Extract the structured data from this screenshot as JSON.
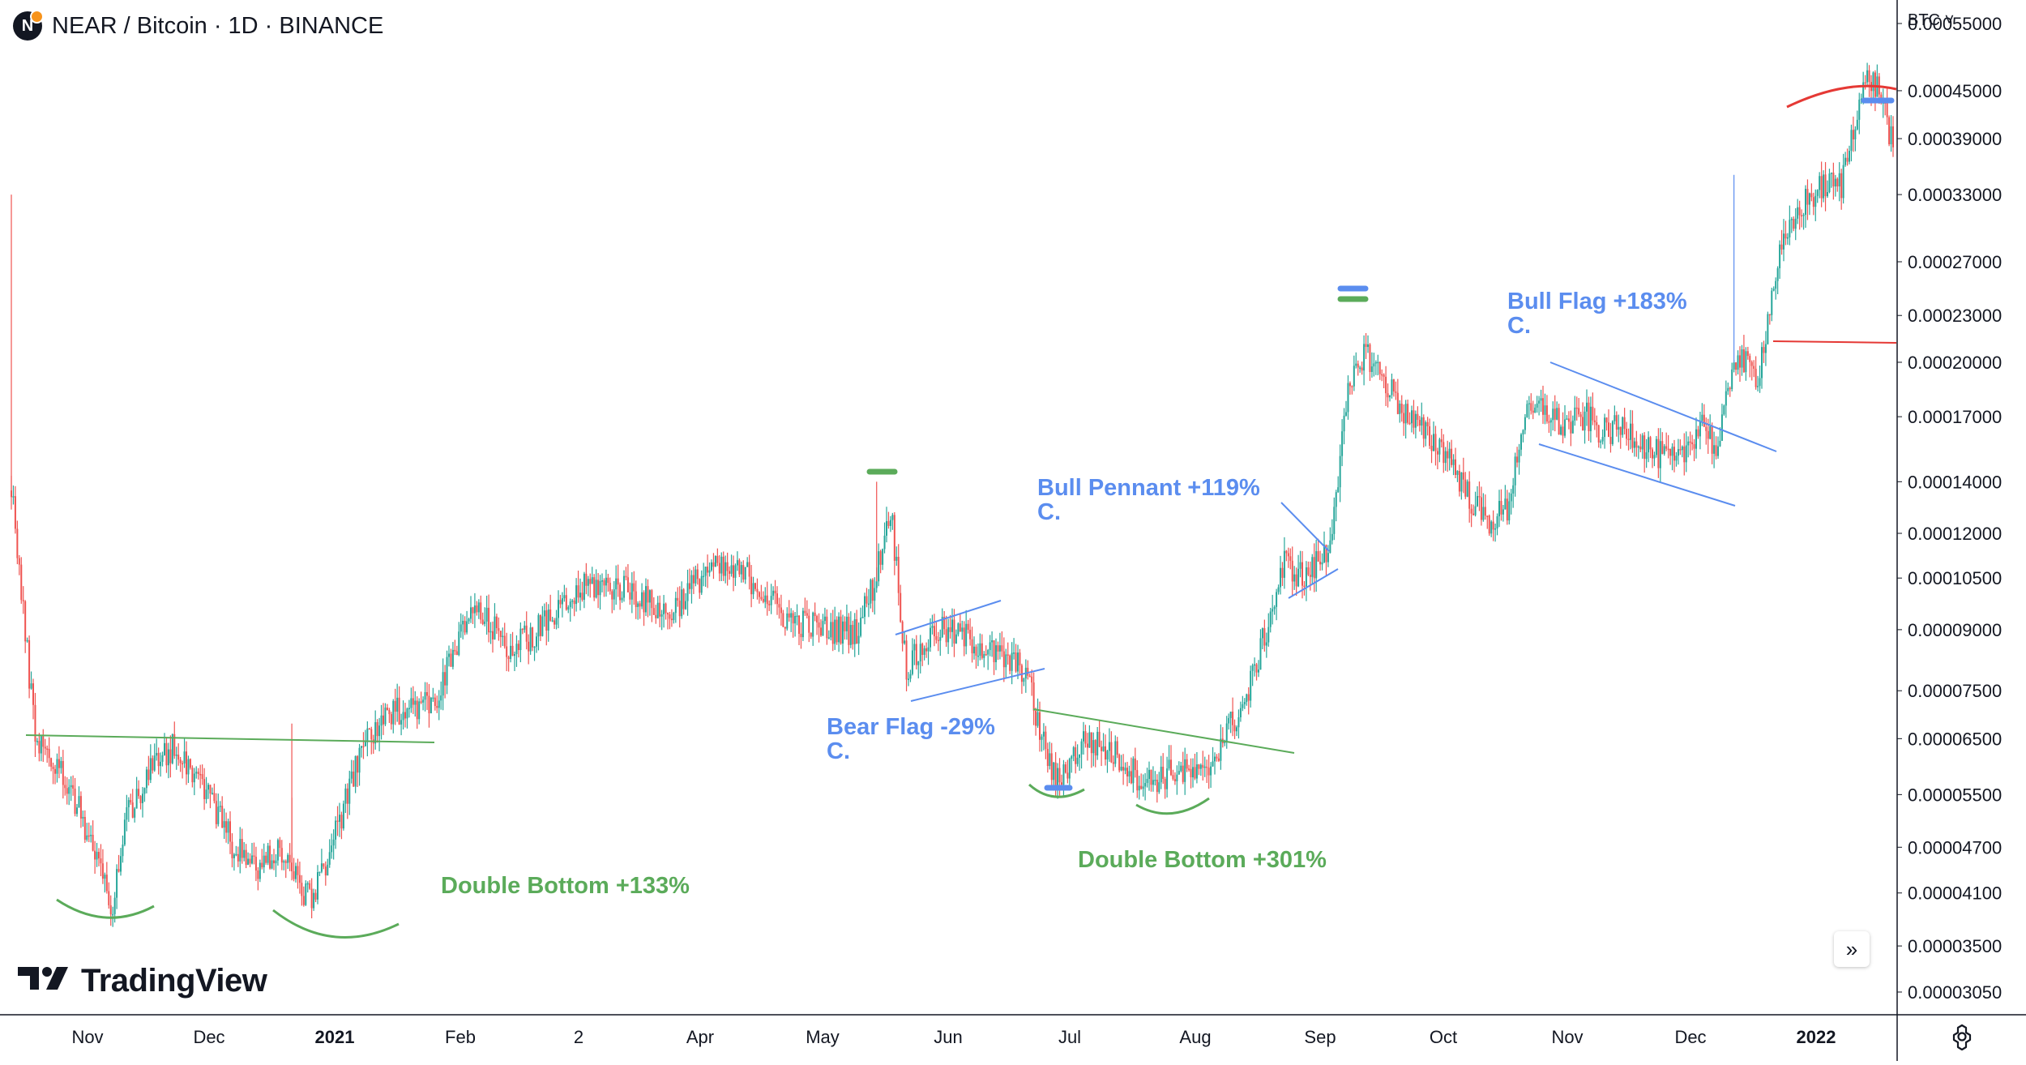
{
  "header": {
    "title": "NEAR / Bitcoin · 1D · BINANCE",
    "logo_letter": "N"
  },
  "currency_selector": "BTC",
  "watermark": "TradingView",
  "colors": {
    "up": "#26a69a",
    "down": "#ef5350",
    "green_annotation": "#5bab5a",
    "blue_annotation": "#5b8def",
    "red_annotation": "#e53935",
    "axis_text": "#131722",
    "grid": "#e9ecf2"
  },
  "icons": [
    "go-to-realtime-icon",
    "settings-icon",
    "chevron-down-icon"
  ],
  "chart_data": {
    "type": "candlestick",
    "scale": "log",
    "x_labels": [
      "Nov",
      "Dec",
      "2021",
      "Feb",
      "2",
      "Apr",
      "May",
      "Jun",
      "Jul",
      "Aug",
      "Sep",
      "Oct",
      "Nov",
      "Dec",
      "2022"
    ],
    "y_ticks": [
      "0.00055000",
      "0.00045000",
      "0.00039000",
      "0.00033000",
      "0.00027000",
      "0.00023000",
      "0.00020000",
      "0.00017000",
      "0.00014000",
      "0.00012000",
      "0.00010500",
      "0.00009000",
      "0.00007500",
      "0.00006500",
      "0.00005500",
      "0.00004700",
      "0.00004100",
      "0.00003500",
      "0.00003050"
    ],
    "ylim": [
      2.85e-05,
      0.00059
    ],
    "anchors": [
      {
        "x": 0,
        "y": 0.00014
      },
      {
        "x": 5,
        "y": 0.0001
      },
      {
        "x": 12,
        "y": 6.6e-05
      },
      {
        "x": 30,
        "y": 5.6e-05
      },
      {
        "x": 44,
        "y": 4.5e-05
      },
      {
        "x": 50,
        "y": 3.85e-05
      },
      {
        "x": 58,
        "y": 5.2e-05
      },
      {
        "x": 70,
        "y": 5.9e-05
      },
      {
        "x": 82,
        "y": 6.4e-05
      },
      {
        "x": 98,
        "y": 5.6e-05
      },
      {
        "x": 112,
        "y": 4.7e-05
      },
      {
        "x": 124,
        "y": 4.4e-05
      },
      {
        "x": 134,
        "y": 4.7e-05
      },
      {
        "x": 150,
        "y": 4e-05
      },
      {
        "x": 162,
        "y": 4.8e-05
      },
      {
        "x": 178,
        "y": 6.5e-05
      },
      {
        "x": 198,
        "y": 7.2e-05
      },
      {
        "x": 212,
        "y": 7.2e-05
      },
      {
        "x": 232,
        "y": 9.6e-05
      },
      {
        "x": 252,
        "y": 8.5e-05
      },
      {
        "x": 272,
        "y": 9.3e-05
      },
      {
        "x": 290,
        "y": 0.000103
      },
      {
        "x": 310,
        "y": 0.000102
      },
      {
        "x": 330,
        "y": 9.4e-05
      },
      {
        "x": 350,
        "y": 0.000108
      },
      {
        "x": 370,
        "y": 0.000106
      },
      {
        "x": 390,
        "y": 9.3e-05
      },
      {
        "x": 410,
        "y": 9e-05
      },
      {
        "x": 425,
        "y": 9e-05
      },
      {
        "x": 434,
        "y": 0.000104
      },
      {
        "x": 442,
        "y": 0.00013
      },
      {
        "x": 450,
        "y": 8e-05
      },
      {
        "x": 465,
        "y": 9e-05
      },
      {
        "x": 480,
        "y": 8.8e-05
      },
      {
        "x": 500,
        "y": 8.2e-05
      },
      {
        "x": 510,
        "y": 8e-05
      },
      {
        "x": 516,
        "y": 6.8e-05
      },
      {
        "x": 525,
        "y": 5.7e-05
      },
      {
        "x": 540,
        "y": 6.5e-05
      },
      {
        "x": 555,
        "y": 6.2e-05
      },
      {
        "x": 570,
        "y": 5.7e-05
      },
      {
        "x": 585,
        "y": 5.9e-05
      },
      {
        "x": 600,
        "y": 5.8e-05
      },
      {
        "x": 610,
        "y": 6.6e-05
      },
      {
        "x": 620,
        "y": 7.2e-05
      },
      {
        "x": 632,
        "y": 9.2e-05
      },
      {
        "x": 640,
        "y": 0.00011
      },
      {
        "x": 650,
        "y": 0.000105
      },
      {
        "x": 662,
        "y": 0.000114
      },
      {
        "x": 672,
        "y": 0.00018
      },
      {
        "x": 680,
        "y": 0.000208
      },
      {
        "x": 690,
        "y": 0.00019
      },
      {
        "x": 702,
        "y": 0.00017
      },
      {
        "x": 712,
        "y": 0.00016
      },
      {
        "x": 722,
        "y": 0.000153
      },
      {
        "x": 732,
        "y": 0.000135
      },
      {
        "x": 742,
        "y": 0.000124
      },
      {
        "x": 752,
        "y": 0.000129
      },
      {
        "x": 760,
        "y": 0.000168
      },
      {
        "x": 770,
        "y": 0.000175
      },
      {
        "x": 780,
        "y": 0.000165
      },
      {
        "x": 792,
        "y": 0.00017
      },
      {
        "x": 800,
        "y": 0.000162
      },
      {
        "x": 812,
        "y": 0.000165
      },
      {
        "x": 825,
        "y": 0.000153
      },
      {
        "x": 838,
        "y": 0.000148
      },
      {
        "x": 850,
        "y": 0.000169
      },
      {
        "x": 858,
        "y": 0.000152
      },
      {
        "x": 866,
        "y": 0.000205
      },
      {
        "x": 872,
        "y": 0.000198
      },
      {
        "x": 878,
        "y": 0.000192
      },
      {
        "x": 888,
        "y": 0.00027
      },
      {
        "x": 900,
        "y": 0.00032
      },
      {
        "x": 912,
        "y": 0.00034
      },
      {
        "x": 920,
        "y": 0.00034
      },
      {
        "x": 928,
        "y": 0.00043
      },
      {
        "x": 934,
        "y": 0.00047
      },
      {
        "x": 940,
        "y": 0.000445
      },
      {
        "x": 946,
        "y": 0.00038
      }
    ],
    "annotations": [
      {
        "label": "Double Bottom +133%",
        "color": "green"
      },
      {
        "label": "Double Bottom +301%",
        "color": "green"
      },
      {
        "label": "Bear Flag -29%",
        "sub": "C.",
        "color": "blue"
      },
      {
        "label": "Bull Pennant +119%",
        "sub": "C.",
        "color": "blue"
      },
      {
        "label": "Bull Flag +183%",
        "sub": "C.",
        "color": "blue"
      }
    ]
  }
}
